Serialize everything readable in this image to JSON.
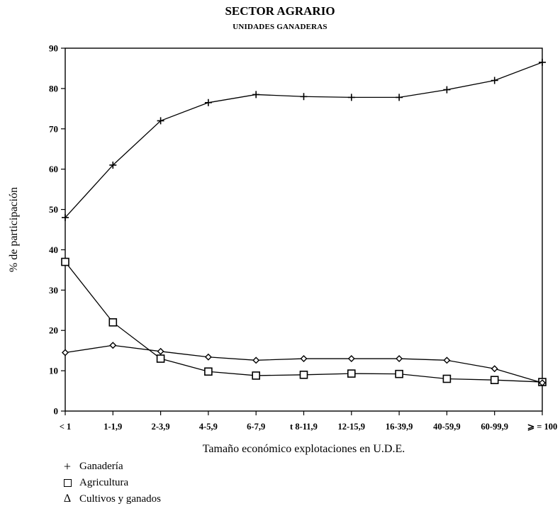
{
  "title": "SECTOR AGRARIO",
  "subtitle": "UNIDADES GANADERAS",
  "chart_data": {
    "type": "line",
    "title": "SECTOR AGRARIO",
    "subtitle": "UNIDADES GANADERAS",
    "xlabel": "Tamaño económico explotaciones en U.D.E.",
    "ylabel": "% de participación",
    "categories": [
      "< 1",
      "1-1,9",
      "2-3,9",
      "4-5,9",
      "6-7,9",
      "t 8-11,9",
      "12-15,9",
      "16-39,9",
      "40-59,9",
      "60-99,9",
      "⩾ = 100"
    ],
    "ylim": [
      0,
      90
    ],
    "yticks": [
      0,
      10,
      20,
      30,
      40,
      50,
      60,
      70,
      80,
      90
    ],
    "grid": false,
    "series": [
      {
        "name": "Ganadería",
        "marker": "plus",
        "values": [
          48,
          61,
          72,
          76.5,
          78.5,
          78,
          77.8,
          77.8,
          79.7,
          82,
          86.5
        ]
      },
      {
        "name": "Agricultura",
        "marker": "square",
        "values": [
          37,
          22,
          13,
          9.8,
          8.8,
          9,
          9.3,
          9.2,
          8,
          7.7,
          7.2
        ]
      },
      {
        "name": "Cultivos y ganados",
        "marker": "triangle",
        "values": [
          14.5,
          16.3,
          14.8,
          13.4,
          12.6,
          13,
          13,
          13,
          12.6,
          10.5,
          7
        ]
      }
    ],
    "legend_position": "bottom-left"
  },
  "legend": [
    {
      "symbol": "+",
      "label": "Ganadería"
    },
    {
      "symbol": "□",
      "label": "Agricultura"
    },
    {
      "symbol": "Δ",
      "label": "Cultivos y ganados"
    }
  ]
}
